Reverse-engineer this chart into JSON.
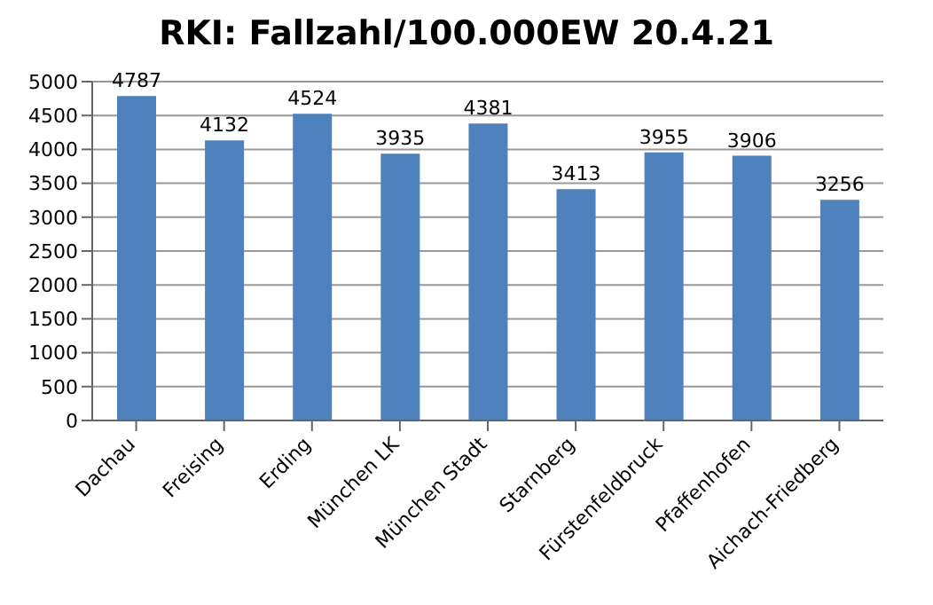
{
  "chart_data": {
    "type": "bar",
    "title": "RKI: Fallzahl/100.000EW 20.4.21",
    "categories": [
      "Dachau",
      "Freising",
      "Erding",
      "München LK",
      "München Stadt",
      "Starnberg",
      "Fürstenfeldbruck",
      "Pfaffenhofen",
      "Aichach-Friedberg"
    ],
    "values": [
      4787,
      4132,
      4524,
      3935,
      4381,
      3413,
      3955,
      3906,
      3256
    ],
    "color": "#4f81bd",
    "ylim": [
      0,
      5000
    ],
    "yticks": [
      0,
      500,
      1000,
      1500,
      2000,
      2500,
      3000,
      3500,
      4000,
      4500,
      5000
    ],
    "grid": "y",
    "data_labels": true
  }
}
